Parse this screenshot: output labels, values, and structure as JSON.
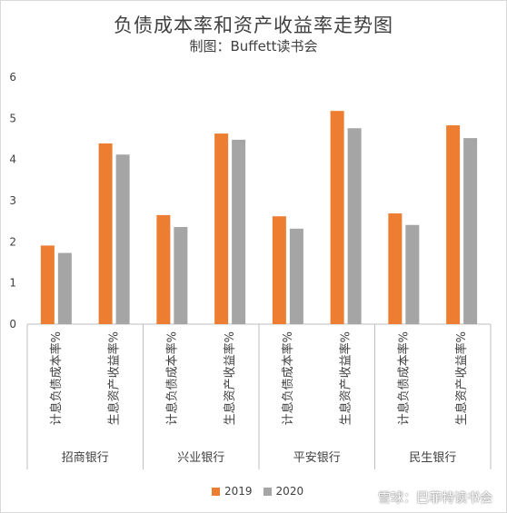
{
  "chart_data": {
    "type": "bar",
    "title": "负债成本率和资产收益率走势图",
    "subtitle": "制图：Buffett读书会",
    "groups": [
      {
        "name": "招商银行",
        "categories": [
          "计息负债成本率%",
          "生息资产收益率%"
        ]
      },
      {
        "name": "兴业银行",
        "categories": [
          "计息负债成本率%",
          "生息资产收益率%"
        ]
      },
      {
        "name": "平安银行",
        "categories": [
          "计息负债成本率%",
          "生息资产收益率%"
        ]
      },
      {
        "name": "民生银行",
        "categories": [
          "计息负债成本率%",
          "生息资产收益率%"
        ]
      }
    ],
    "series": [
      {
        "name": "2019",
        "color": "#ed7d31",
        "values": [
          1.91,
          4.39,
          2.65,
          4.63,
          2.62,
          5.18,
          2.69,
          4.83
        ]
      },
      {
        "name": "2020",
        "color": "#a5a5a5",
        "values": [
          1.73,
          4.12,
          2.36,
          4.48,
          2.32,
          4.76,
          2.41,
          4.52
        ]
      }
    ],
    "ylim": [
      0,
      6
    ],
    "yticks": [
      0,
      1,
      2,
      3,
      4,
      5,
      6
    ],
    "grid": false,
    "legend": "bottom"
  },
  "watermark": {
    "text": "雪球：巴菲特读书会",
    "icon": "snowball-icon"
  }
}
